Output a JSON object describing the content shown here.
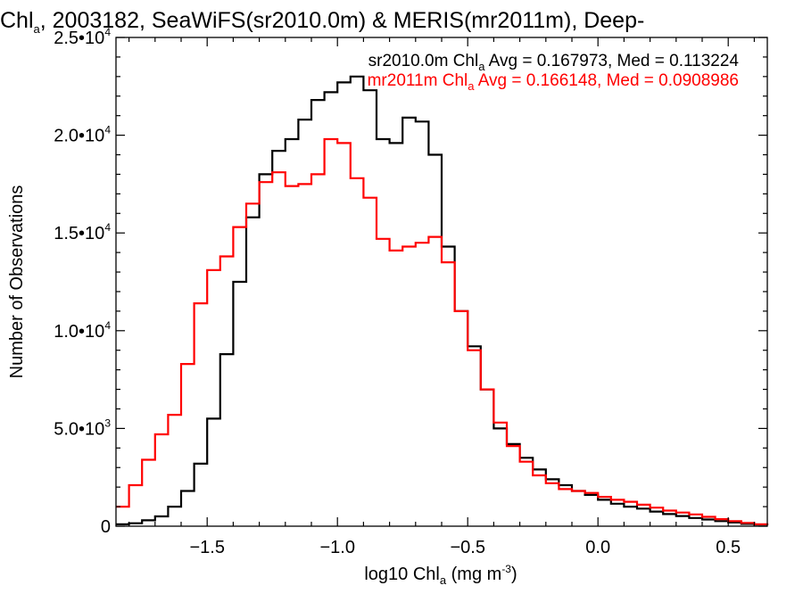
{
  "chart_data": {
    "type": "line",
    "title": {
      "prefix": "Chl",
      "sub": "a",
      "rest": ", 2003182, SeaWiFS(sr2010.0m) & MERIS(mr2011m), Deep-"
    },
    "xlabel": {
      "prefix": "log10 Chl",
      "sub": "a",
      "mid": " (mg m",
      "sup": "-3",
      "end": ")"
    },
    "ylabel": "Number of Observations",
    "xlim": [
      -1.85,
      0.65
    ],
    "ylim": [
      0,
      25000
    ],
    "xticks": [
      {
        "value": -1.5,
        "label": "−1.5"
      },
      {
        "value": -1.0,
        "label": "−1.0"
      },
      {
        "value": -0.5,
        "label": "−0.5"
      },
      {
        "value": 0.0,
        "label": "0.0"
      },
      {
        "value": 0.5,
        "label": "0.5"
      }
    ],
    "yticks": [
      {
        "value": 0,
        "label": "0",
        "mant": "0",
        "exp": ""
      },
      {
        "value": 5000,
        "label": "5.0•103",
        "mant": "5.0•10",
        "exp": "3"
      },
      {
        "value": 10000,
        "label": "1.0•104",
        "mant": "1.0•10",
        "exp": "4"
      },
      {
        "value": 15000,
        "label": "1.5•104",
        "mant": "1.5•10",
        "exp": "4"
      },
      {
        "value": 20000,
        "label": "2.0•104",
        "mant": "2.0•10",
        "exp": "4"
      },
      {
        "value": 25000,
        "label": "2.5•104",
        "mant": "2.5•10",
        "exp": "4"
      }
    ],
    "legend_placement": "top-right",
    "grid": false,
    "step": "histogram",
    "annotations": [
      {
        "prefix": "sr2010.0m Chl",
        "sub": "a",
        "rest": " Avg = 0.167973, Med = 0.113224",
        "color": "#000000"
      },
      {
        "prefix": "mr2011m Chl",
        "sub": "a",
        "rest": " Avg = 0.166148, Med = 0.0908986",
        "color": "#ff0000"
      }
    ],
    "series": [
      {
        "color": "#000000",
        "x": [
          -1.85,
          -1.8,
          -1.75,
          -1.7,
          -1.65,
          -1.6,
          -1.55,
          -1.5,
          -1.45,
          -1.4,
          -1.35,
          -1.3,
          -1.25,
          -1.2,
          -1.15,
          -1.1,
          -1.05,
          -1.0,
          -0.95,
          -0.9,
          -0.85,
          -0.8,
          -0.75,
          -0.7,
          -0.65,
          -0.6,
          -0.55,
          -0.5,
          -0.45,
          -0.4,
          -0.35,
          -0.3,
          -0.25,
          -0.2,
          -0.15,
          -0.1,
          -0.05,
          0.0,
          0.05,
          0.1,
          0.15,
          0.2,
          0.25,
          0.3,
          0.35,
          0.4,
          0.45,
          0.5,
          0.55,
          0.6,
          0.65
        ],
        "y": [
          100,
          150,
          300,
          500,
          1000,
          1800,
          3200,
          5500,
          8800,
          12500,
          15800,
          18000,
          19200,
          19800,
          20800,
          21800,
          22200,
          22700,
          23000,
          22300,
          19800,
          19600,
          20900,
          20700,
          19000,
          14300,
          11000,
          9200,
          7000,
          5000,
          4200,
          3500,
          2900,
          2400,
          2100,
          1800,
          1600,
          1350,
          1150,
          1000,
          900,
          750,
          620,
          520,
          420,
          340,
          260,
          190,
          120,
          80,
          50
        ]
      },
      {
        "color": "#ff0000",
        "x": [
          -1.85,
          -1.8,
          -1.75,
          -1.7,
          -1.65,
          -1.6,
          -1.55,
          -1.5,
          -1.45,
          -1.4,
          -1.35,
          -1.3,
          -1.25,
          -1.2,
          -1.15,
          -1.1,
          -1.05,
          -1.0,
          -0.95,
          -0.9,
          -0.85,
          -0.8,
          -0.75,
          -0.7,
          -0.65,
          -0.6,
          -0.55,
          -0.5,
          -0.45,
          -0.4,
          -0.35,
          -0.3,
          -0.25,
          -0.2,
          -0.15,
          -0.1,
          -0.05,
          0.0,
          0.05,
          0.1,
          0.15,
          0.2,
          0.25,
          0.3,
          0.35,
          0.4,
          0.45,
          0.5,
          0.55,
          0.6,
          0.65
        ],
        "y": [
          1000,
          2100,
          3400,
          4700,
          5700,
          8300,
          11400,
          13100,
          13800,
          15300,
          16500,
          17600,
          18100,
          17400,
          17500,
          18000,
          19800,
          19600,
          17800,
          16800,
          14700,
          14100,
          14300,
          14500,
          14800,
          13500,
          11000,
          9000,
          7000,
          5300,
          4100,
          3300,
          2600,
          2200,
          1900,
          1800,
          1700,
          1500,
          1350,
          1250,
          1100,
          950,
          800,
          700,
          600,
          480,
          360,
          260,
          170,
          100,
          60
        ]
      }
    ]
  }
}
